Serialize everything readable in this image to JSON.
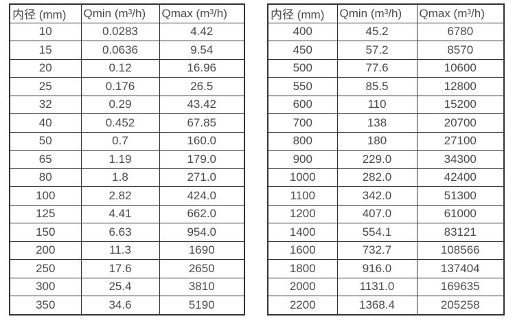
{
  "colors": {
    "border": "#333333",
    "text": "#4a4a4a",
    "background": "#ffffff"
  },
  "tables": [
    {
      "name": "flow-rate-table-small-diameters",
      "headers": [
        "内径 (mm)",
        "Qmin (m³/h)",
        "Qmax (m³/h)"
      ],
      "rows": [
        [
          "10",
          "0.0283",
          "4.42"
        ],
        [
          "15",
          "0.0636",
          "9.54"
        ],
        [
          "20",
          "0.12",
          "16.96"
        ],
        [
          "25",
          "0.176",
          "26.5"
        ],
        [
          "32",
          "0.29",
          "43.42"
        ],
        [
          "40",
          "0.452",
          "67.85"
        ],
        [
          "50",
          "0.7",
          "160.0"
        ],
        [
          "65",
          "1.19",
          "179.0"
        ],
        [
          "80",
          "1.8",
          "271.0"
        ],
        [
          "100",
          "2.82",
          "424.0"
        ],
        [
          "125",
          "4.41",
          "662.0"
        ],
        [
          "150",
          "6.63",
          "954.0"
        ],
        [
          "200",
          "11.3",
          "1690"
        ],
        [
          "250",
          "17.6",
          "2650"
        ],
        [
          "300",
          "25.4",
          "3810"
        ],
        [
          "350",
          "34.6",
          "5190"
        ]
      ]
    },
    {
      "name": "flow-rate-table-large-diameters",
      "headers": [
        "内径 (mm)",
        "Qmin (m³/h)",
        "Qmax (m³/h)"
      ],
      "rows": [
        [
          "400",
          "45.2",
          "6780"
        ],
        [
          "450",
          "57.2",
          "8570"
        ],
        [
          "500",
          "77.6",
          "10600"
        ],
        [
          "550",
          "85.5",
          "12800"
        ],
        [
          "600",
          "110",
          "15200"
        ],
        [
          "700",
          "138",
          "20700"
        ],
        [
          "800",
          "180",
          "27100"
        ],
        [
          "900",
          "229.0",
          "34300"
        ],
        [
          "1000",
          "282.0",
          "42400"
        ],
        [
          "1100",
          "342.0",
          "51300"
        ],
        [
          "1200",
          "407.0",
          "61000"
        ],
        [
          "1400",
          "554.1",
          "83121"
        ],
        [
          "1600",
          "732.7",
          "108566"
        ],
        [
          "1800",
          "916.0",
          "137404"
        ],
        [
          "2000",
          "1131.0",
          "169635"
        ],
        [
          "2200",
          "1368.4",
          "205258"
        ]
      ]
    }
  ]
}
